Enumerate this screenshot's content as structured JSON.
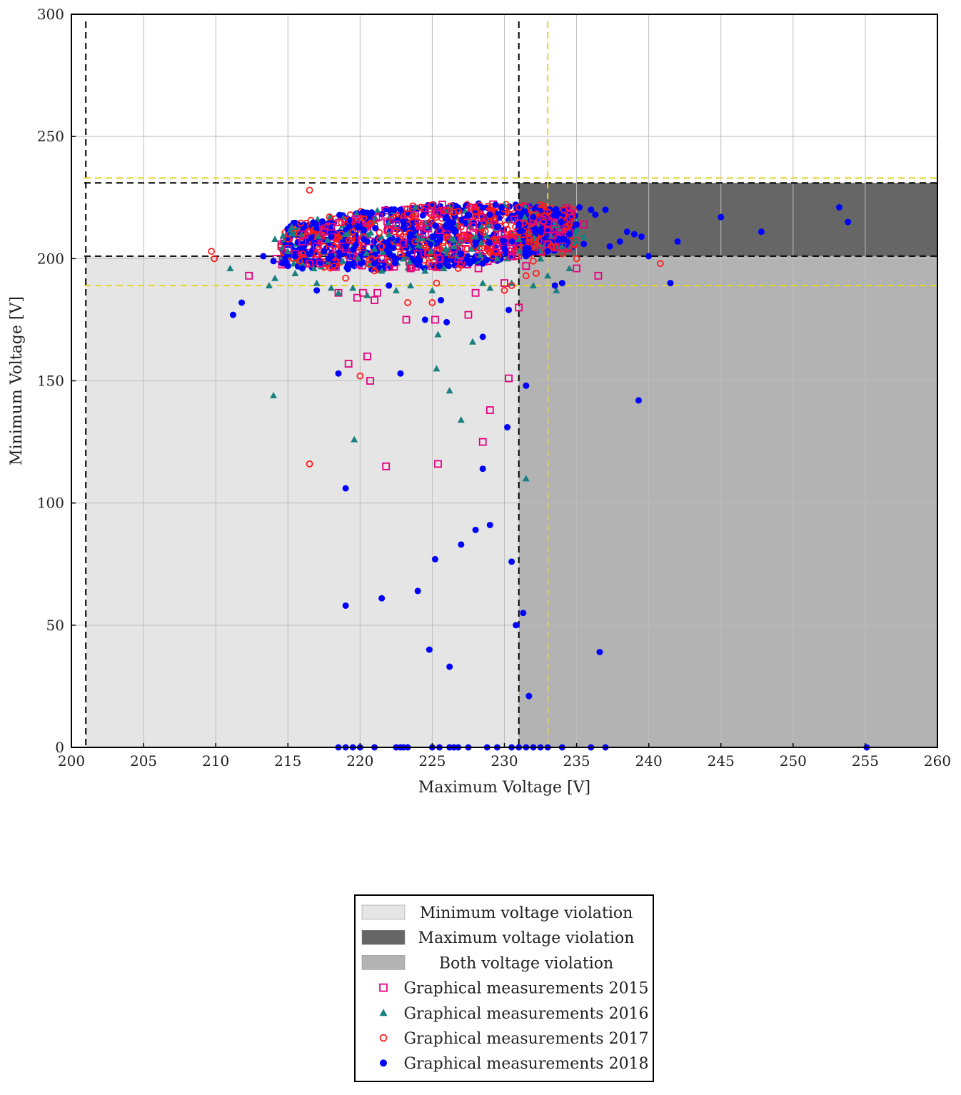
{
  "chart_data": {
    "type": "scatter",
    "title": "",
    "xlabel": "Maximum Voltage [V]",
    "ylabel": "Minimum Voltage [V]",
    "xlim": [
      200,
      260
    ],
    "ylim": [
      0,
      300
    ],
    "grid": true,
    "x_ticks": [
      "200",
      "205",
      "210",
      "215",
      "220",
      "225",
      "230",
      "235",
      "240",
      "245",
      "250",
      "255",
      "260"
    ],
    "y_ticks": [
      "0",
      "50",
      "100",
      "150",
      "200",
      "250",
      "300"
    ],
    "legend_position": "bottom-center",
    "regions": [
      {
        "name": "Minimum voltage violation",
        "color": "#e5e5e5",
        "x_range": [
          201,
          231
        ],
        "y_range": [
          0,
          201
        ]
      },
      {
        "name": "Maximum voltage violation",
        "color": "#666666",
        "x_range": [
          231,
          260
        ],
        "y_range": [
          201,
          231
        ]
      },
      {
        "name": "Both voltage violation",
        "color": "#b3b3b3",
        "x_range": [
          231,
          260
        ],
        "y_range": [
          0,
          201
        ]
      }
    ],
    "reference_lines": [
      {
        "orientation": "vertical",
        "value": 201,
        "color": "#000000",
        "style": "dashed"
      },
      {
        "orientation": "vertical",
        "value": 231,
        "color": "#000000",
        "style": "dashed"
      },
      {
        "orientation": "horizontal",
        "value": 201,
        "color": "#000000",
        "style": "dashed"
      },
      {
        "orientation": "horizontal",
        "value": 231,
        "color": "#000000",
        "style": "dashed"
      },
      {
        "orientation": "vertical",
        "value": 233,
        "color": "#e6d422",
        "style": "dashed"
      },
      {
        "orientation": "horizontal",
        "value": 189,
        "color": "#e6d422",
        "style": "dashed"
      },
      {
        "orientation": "horizontal",
        "value": 233,
        "color": "#e6d422",
        "style": "dashed"
      }
    ],
    "series": [
      {
        "name": "Graphical measurements 2015",
        "marker": "square-open",
        "color": "#e6007e",
        "points": [
          [
            212.3,
            193
          ],
          [
            215.5,
            202
          ],
          [
            216,
            207
          ],
          [
            217,
            205
          ],
          [
            218.5,
            186
          ],
          [
            219.2,
            157
          ],
          [
            219.8,
            184
          ],
          [
            220.2,
            186
          ],
          [
            220.5,
            160
          ],
          [
            220.7,
            150
          ],
          [
            221,
            183
          ],
          [
            221.2,
            186
          ],
          [
            221.8,
            115
          ],
          [
            222,
            212
          ],
          [
            222.5,
            214
          ],
          [
            223,
            206
          ],
          [
            223.2,
            175
          ],
          [
            224,
            202
          ],
          [
            225,
            197
          ],
          [
            225.2,
            175
          ],
          [
            225.4,
            116
          ],
          [
            226,
            210
          ],
          [
            226.5,
            204
          ],
          [
            227,
            208
          ],
          [
            227.5,
            177
          ],
          [
            228,
            186
          ],
          [
            228.5,
            125
          ],
          [
            229,
            138
          ],
          [
            229.5,
            205
          ],
          [
            230,
            190
          ],
          [
            230.3,
            151
          ],
          [
            231,
            180
          ],
          [
            231.5,
            197
          ],
          [
            232,
            215
          ],
          [
            233,
            212
          ],
          [
            234,
            205
          ],
          [
            235,
            196
          ],
          [
            235.5,
            214
          ],
          [
            236.5,
            193
          ],
          [
            217.5,
            211
          ],
          [
            218,
            213
          ],
          [
            219,
            204
          ],
          [
            221.5,
            200
          ],
          [
            223.5,
            196
          ],
          [
            224.5,
            210
          ],
          [
            226.8,
            200
          ],
          [
            228.2,
            196
          ],
          [
            229.8,
            210
          ],
          [
            230.7,
            216
          ],
          [
            232.5,
            203
          ],
          [
            233.8,
            211
          ],
          [
            216.5,
            198
          ],
          [
            215,
            204
          ],
          [
            214.2,
            200
          ]
        ]
      },
      {
        "name": "Graphical measurements 2016",
        "marker": "triangle",
        "color": "#1a7f7f",
        "points": [
          [
            211,
            196
          ],
          [
            213.7,
            189
          ],
          [
            214,
            144
          ],
          [
            214.1,
            192
          ],
          [
            214.1,
            208
          ],
          [
            215,
            203
          ],
          [
            216,
            198
          ],
          [
            217,
            190
          ],
          [
            218,
            188
          ],
          [
            218.5,
            186
          ],
          [
            219.5,
            188
          ],
          [
            219.6,
            126
          ],
          [
            220.5,
            185
          ],
          [
            221.5,
            195
          ],
          [
            222.5,
            187
          ],
          [
            223.5,
            189
          ],
          [
            224.5,
            195
          ],
          [
            225,
            187
          ],
          [
            225.3,
            155
          ],
          [
            225.4,
            169
          ],
          [
            226.2,
            146
          ],
          [
            227,
            134
          ],
          [
            227.8,
            166
          ],
          [
            228.5,
            190
          ],
          [
            229,
            188
          ],
          [
            230,
            222
          ],
          [
            230.5,
            190
          ],
          [
            231,
            208
          ],
          [
            231.5,
            110
          ],
          [
            232,
            189
          ],
          [
            233,
            193
          ],
          [
            233.6,
            187
          ],
          [
            234,
            205
          ],
          [
            235,
            212
          ],
          [
            235.5,
            209
          ],
          [
            215.5,
            194
          ],
          [
            217.5,
            203
          ],
          [
            219,
            210
          ],
          [
            221,
            204
          ],
          [
            223,
            200
          ],
          [
            224,
            208
          ],
          [
            226.5,
            205
          ],
          [
            228,
            209
          ],
          [
            229.5,
            200
          ],
          [
            232.5,
            200
          ],
          [
            234.5,
            196
          ],
          [
            216.8,
            196
          ],
          [
            218.8,
            199
          ],
          [
            222,
            210
          ],
          [
            225.8,
            196
          ]
        ]
      },
      {
        "name": "Graphical measurements 2017",
        "marker": "circle-open",
        "color": "#ff1a1a",
        "points": [
          [
            209.7,
            203
          ],
          [
            209.9,
            200
          ],
          [
            215,
            208
          ],
          [
            216.5,
            116
          ],
          [
            216.5,
            228
          ],
          [
            217,
            202
          ],
          [
            218.5,
            209
          ],
          [
            219,
            192
          ],
          [
            220,
            152
          ],
          [
            221,
            195
          ],
          [
            222,
            199
          ],
          [
            223,
            217
          ],
          [
            223.3,
            182
          ],
          [
            224,
            215
          ],
          [
            224.2,
            221
          ],
          [
            225,
            222
          ],
          [
            225,
            182
          ],
          [
            225.3,
            190
          ],
          [
            226,
            209
          ],
          [
            226.5,
            219
          ],
          [
            227.5,
            208
          ],
          [
            228,
            219
          ],
          [
            229,
            217
          ],
          [
            230,
            187
          ],
          [
            230.5,
            189
          ],
          [
            231,
            221
          ],
          [
            231.5,
            193
          ],
          [
            232,
            199
          ],
          [
            232.5,
            222
          ],
          [
            233,
            219
          ],
          [
            234,
            202
          ],
          [
            234.5,
            214
          ],
          [
            235,
            200
          ],
          [
            240.8,
            198
          ],
          [
            216,
            202
          ],
          [
            217.5,
            205
          ],
          [
            219.5,
            211
          ],
          [
            221.5,
            205
          ],
          [
            223.8,
            207
          ],
          [
            225.5,
            204
          ],
          [
            227,
            213
          ],
          [
            228.8,
            204
          ],
          [
            230.2,
            212
          ],
          [
            231.8,
            207
          ],
          [
            233.2,
            205
          ],
          [
            215.8,
            199
          ],
          [
            218.2,
            197
          ],
          [
            220.8,
            200
          ],
          [
            222.8,
            202
          ],
          [
            224.8,
            198
          ],
          [
            226.8,
            196
          ],
          [
            229.2,
            201
          ],
          [
            232.2,
            194
          ]
        ]
      },
      {
        "name": "Graphical measurements 2018",
        "marker": "circle",
        "color": "#0000ff",
        "points": [
          [
            211.2,
            177
          ],
          [
            211.8,
            182
          ],
          [
            213.3,
            201
          ],
          [
            215.5,
            201
          ],
          [
            217,
            187
          ],
          [
            217.8,
            200
          ],
          [
            218,
            209
          ],
          [
            218.5,
            153
          ],
          [
            218.5,
            0
          ],
          [
            219,
            106
          ],
          [
            219,
            58
          ],
          [
            219,
            0
          ],
          [
            219.5,
            0
          ],
          [
            220,
            0
          ],
          [
            220.2,
            219
          ],
          [
            221,
            0
          ],
          [
            221.5,
            61
          ],
          [
            222,
            189
          ],
          [
            222.5,
            0
          ],
          [
            222.8,
            220
          ],
          [
            222.8,
            153
          ],
          [
            222.8,
            0
          ],
          [
            223,
            0
          ],
          [
            223.3,
            0
          ],
          [
            224,
            64
          ],
          [
            224.5,
            175
          ],
          [
            224.8,
            40
          ],
          [
            225,
            0
          ],
          [
            225.2,
            77
          ],
          [
            225.5,
            0
          ],
          [
            225.6,
            183
          ],
          [
            226,
            174
          ],
          [
            226.2,
            33
          ],
          [
            226.2,
            0
          ],
          [
            226.5,
            0
          ],
          [
            226.8,
            0
          ],
          [
            227,
            83
          ],
          [
            227.5,
            0
          ],
          [
            228,
            89
          ],
          [
            228.5,
            114
          ],
          [
            228.5,
            168
          ],
          [
            228.8,
            0
          ],
          [
            229,
            91
          ],
          [
            229.5,
            0
          ],
          [
            229.8,
            221
          ],
          [
            230.2,
            131
          ],
          [
            230.3,
            179
          ],
          [
            230.5,
            76
          ],
          [
            230.5,
            0
          ],
          [
            230.8,
            50
          ],
          [
            231,
            0
          ],
          [
            231.3,
            55
          ],
          [
            231.5,
            148
          ],
          [
            231.5,
            0
          ],
          [
            231.7,
            21
          ],
          [
            232,
            0
          ],
          [
            232.5,
            0
          ],
          [
            233,
            0
          ],
          [
            233.5,
            189
          ],
          [
            234,
            190
          ],
          [
            234,
            0
          ],
          [
            234.5,
            210
          ],
          [
            235,
            214
          ],
          [
            235.2,
            221
          ],
          [
            236,
            220
          ],
          [
            236,
            0
          ],
          [
            236.3,
            218
          ],
          [
            236.6,
            39
          ],
          [
            237,
            220
          ],
          [
            237,
            0
          ],
          [
            237.3,
            205
          ],
          [
            238,
            207
          ],
          [
            238.5,
            211
          ],
          [
            239,
            210
          ],
          [
            239.3,
            142
          ],
          [
            239.5,
            209
          ],
          [
            240,
            201
          ],
          [
            241.5,
            190
          ],
          [
            242,
            207
          ],
          [
            245,
            217
          ],
          [
            247.8,
            211
          ],
          [
            253.2,
            221
          ],
          [
            253.8,
            215
          ],
          [
            255.1,
            0
          ],
          [
            214,
            199
          ],
          [
            215,
            197
          ],
          [
            216,
            196
          ],
          [
            217.5,
            203
          ],
          [
            219,
            205
          ],
          [
            220.5,
            207
          ],
          [
            222,
            205
          ],
          [
            223.5,
            210
          ],
          [
            225,
            209
          ],
          [
            226.5,
            212
          ],
          [
            228,
            206
          ],
          [
            229.5,
            213
          ],
          [
            231,
            214
          ],
          [
            232.5,
            211
          ],
          [
            234,
            208
          ],
          [
            235.5,
            206
          ],
          [
            221,
            198
          ],
          [
            224,
            200
          ],
          [
            227,
            202
          ],
          [
            230,
            204
          ],
          [
            233,
            203
          ],
          [
            220,
            213
          ],
          [
            223,
            215
          ],
          [
            226,
            217
          ],
          [
            229,
            218
          ],
          [
            232,
            217
          ],
          [
            218,
            201
          ],
          [
            225.5,
            197
          ],
          [
            228.5,
            198
          ],
          [
            231.5,
            201
          ]
        ]
      }
    ],
    "dense_cluster": {
      "x_range": [
        213,
        236
      ],
      "y_range": [
        186,
        222
      ],
      "note_series_names": [
        "Graphical measurements 2015",
        "Graphical measurements 2016",
        "Graphical measurements 2017",
        "Graphical measurements 2018"
      ]
    }
  },
  "legend": {
    "items": [
      {
        "label": "Minimum voltage violation",
        "swatch": "rect",
        "color": "#e5e5e5"
      },
      {
        "label": "Maximum voltage violation",
        "swatch": "rect",
        "color": "#666666"
      },
      {
        "label": "Both voltage violation",
        "swatch": "rect",
        "color": "#b3b3b3"
      },
      {
        "label": "Graphical measurements 2015",
        "swatch": "square-open",
        "color": "#e6007e"
      },
      {
        "label": "Graphical measurements 2016",
        "swatch": "triangle",
        "color": "#1a7f7f"
      },
      {
        "label": "Graphical measurements 2017",
        "swatch": "circle-open",
        "color": "#ff1a1a"
      },
      {
        "label": "Graphical measurements 2018",
        "swatch": "circle",
        "color": "#0000ff"
      }
    ]
  }
}
